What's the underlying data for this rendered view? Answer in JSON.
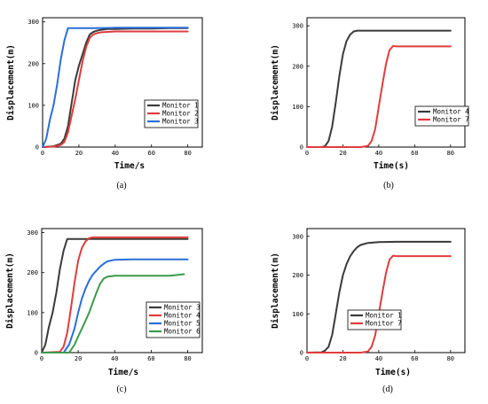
{
  "figure": {
    "panels": [
      {
        "caption": "(a)"
      },
      {
        "caption": "(b)"
      },
      {
        "caption": "(c)"
      },
      {
        "caption": "(d)"
      }
    ]
  },
  "chart_data": [
    {
      "type": "line",
      "panel": "(a)",
      "xlabel": "Time/s",
      "ylabel": "Displacement(m)",
      "xlim": [
        0,
        88
      ],
      "ylim": [
        0,
        310
      ],
      "xticks": [
        0,
        20,
        40,
        60,
        80
      ],
      "yticks": [
        0,
        100,
        200,
        300
      ],
      "legend_position": "center-right",
      "series": [
        {
          "name": "Monitor 1",
          "color": "#3a3a3a",
          "x": [
            0,
            6,
            10,
            12,
            14,
            16,
            18,
            20,
            22,
            24,
            26,
            28,
            30,
            32,
            36,
            40,
            50,
            60,
            70,
            80
          ],
          "y": [
            0,
            2,
            8,
            20,
            50,
            105,
            160,
            195,
            222,
            250,
            270,
            276,
            279,
            281,
            283,
            283,
            284,
            284,
            285,
            285
          ]
        },
        {
          "name": "Monitor 2",
          "color": "#e03c3c",
          "x": [
            0,
            6,
            10,
            12,
            14,
            16,
            18,
            20,
            22,
            24,
            26,
            28,
            30,
            32,
            36,
            40,
            50,
            60,
            70,
            80
          ],
          "y": [
            0,
            1,
            5,
            12,
            35,
            75,
            115,
            160,
            205,
            240,
            262,
            270,
            273,
            275,
            276,
            277,
            277,
            277,
            277,
            277
          ]
        },
        {
          "name": "Monitor 3",
          "color": "#2a6fd6",
          "x": [
            0,
            2,
            4,
            6,
            8,
            10,
            12,
            14,
            16,
            20,
            30,
            40,
            50,
            60,
            70,
            80
          ],
          "y": [
            0,
            20,
            65,
            100,
            150,
            210,
            255,
            285,
            285,
            285,
            285,
            286,
            286,
            286,
            286,
            286
          ]
        }
      ]
    },
    {
      "type": "line",
      "panel": "(b)",
      "xlabel": "Time(s)",
      "ylabel": "Displacement(m)",
      "xlim": [
        0,
        88
      ],
      "ylim": [
        0,
        320
      ],
      "xticks": [
        0,
        20,
        40,
        60,
        80
      ],
      "yticks": [
        0,
        100,
        200,
        300
      ],
      "legend_position": "center-right",
      "series": [
        {
          "name": "Monitor 4",
          "color": "#3a3a3a",
          "x": [
            0,
            8,
            10,
            12,
            14,
            16,
            18,
            20,
            22,
            24,
            26,
            28,
            30,
            40,
            50,
            60,
            70,
            80
          ],
          "y": [
            0,
            0,
            2,
            15,
            50,
            110,
            175,
            230,
            262,
            278,
            286,
            288,
            288,
            288,
            288,
            288,
            288,
            288
          ]
        },
        {
          "name": "Monitor 7",
          "color": "#e03c3c",
          "x": [
            0,
            30,
            34,
            36,
            38,
            40,
            42,
            44,
            46,
            48,
            50,
            52,
            60,
            70,
            80
          ],
          "y": [
            0,
            0,
            3,
            15,
            45,
            100,
            155,
            205,
            240,
            250,
            249,
            249,
            249,
            249,
            249
          ]
        }
      ]
    },
    {
      "type": "line",
      "panel": "(c)",
      "xlabel": "Time/s",
      "ylabel": "Displacement(m)",
      "xlim": [
        0,
        88
      ],
      "ylim": [
        0,
        310
      ],
      "xticks": [
        0,
        20,
        40,
        60,
        80
      ],
      "yticks": [
        0,
        100,
        200,
        300
      ],
      "legend_position": "center-right",
      "series": [
        {
          "name": "Monitor 3",
          "color": "#3a3a3a",
          "x": [
            0,
            2,
            4,
            6,
            8,
            10,
            12,
            14,
            16,
            20,
            30,
            40,
            50,
            60,
            70,
            80
          ],
          "y": [
            0,
            20,
            65,
            100,
            150,
            210,
            255,
            284,
            284,
            284,
            284,
            284,
            284,
            284,
            284,
            284
          ]
        },
        {
          "name": "Monitor 4",
          "color": "#e03c3c",
          "x": [
            0,
            10,
            12,
            14,
            16,
            18,
            20,
            22,
            24,
            26,
            28,
            30,
            40,
            50,
            60,
            70,
            80
          ],
          "y": [
            0,
            2,
            15,
            50,
            110,
            175,
            230,
            262,
            278,
            286,
            288,
            288,
            288,
            288,
            288,
            288,
            288
          ]
        },
        {
          "name": "Monitor 5",
          "color": "#2a6fd6",
          "x": [
            0,
            12,
            15,
            18,
            20,
            22,
            24,
            26,
            28,
            30,
            32,
            34,
            36,
            40,
            50,
            60,
            70,
            80
          ],
          "y": [
            0,
            0,
            20,
            60,
            100,
            135,
            160,
            180,
            195,
            205,
            215,
            222,
            228,
            232,
            233,
            233,
            233,
            233
          ]
        },
        {
          "name": "Monitor 6",
          "color": "#3a9a4a",
          "x": [
            0,
            15,
            18,
            20,
            22,
            24,
            26,
            28,
            30,
            32,
            34,
            36,
            40,
            50,
            60,
            70,
            78
          ],
          "y": [
            0,
            0,
            20,
            40,
            60,
            80,
            100,
            125,
            150,
            172,
            185,
            190,
            192,
            192,
            192,
            192,
            196
          ]
        }
      ]
    },
    {
      "type": "line",
      "panel": "(d)",
      "xlabel": "Time(s)",
      "ylabel": "Displacement(m)",
      "xlim": [
        0,
        88
      ],
      "ylim": [
        0,
        320
      ],
      "xticks": [
        0,
        20,
        40,
        60,
        80
      ],
      "yticks": [
        0,
        100,
        200,
        300
      ],
      "legend_position": "center-right",
      "series": [
        {
          "name": "Monitor 1",
          "color": "#3a3a3a",
          "x": [
            0,
            8,
            10,
            12,
            14,
            16,
            18,
            20,
            22,
            24,
            26,
            28,
            30,
            34,
            40,
            50,
            60,
            70,
            80
          ],
          "y": [
            0,
            1,
            5,
            15,
            45,
            100,
            155,
            200,
            228,
            248,
            262,
            272,
            278,
            283,
            285,
            286,
            286,
            286,
            286
          ]
        },
        {
          "name": "Monitor 7",
          "color": "#e03c3c",
          "x": [
            0,
            30,
            34,
            36,
            38,
            40,
            42,
            44,
            46,
            48,
            50,
            52,
            60,
            70,
            80
          ],
          "y": [
            0,
            0,
            3,
            15,
            45,
            100,
            155,
            205,
            240,
            250,
            249,
            249,
            249,
            249,
            249
          ]
        }
      ]
    }
  ]
}
